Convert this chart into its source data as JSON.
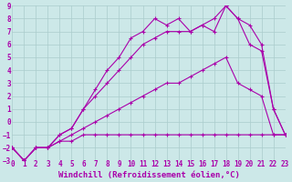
{
  "xlabel": "Windchill (Refroidissement éolien,°C)",
  "bg_color": "#cce8e8",
  "grid_color": "#aacccc",
  "line_color": "#aa00aa",
  "xlim": [
    0,
    23
  ],
  "ylim": [
    -3,
    9
  ],
  "xticks": [
    0,
    1,
    2,
    3,
    4,
    5,
    6,
    7,
    8,
    9,
    10,
    11,
    12,
    13,
    14,
    15,
    16,
    17,
    18,
    19,
    20,
    21,
    22,
    23
  ],
  "yticks": [
    -3,
    -2,
    -1,
    0,
    1,
    2,
    3,
    4,
    5,
    6,
    7,
    8,
    9
  ],
  "lines": [
    {
      "x": [
        0,
        1,
        2,
        3,
        4,
        5,
        6,
        7,
        8,
        9,
        10,
        11,
        12,
        13,
        14,
        15,
        16,
        17,
        18,
        19,
        20,
        21,
        22,
        23
      ],
      "y": [
        -2,
        -3,
        -2,
        -2,
        -1.5,
        -1.5,
        -1,
        -1,
        -1,
        -1,
        -1,
        -1,
        -1,
        -1,
        -1,
        -1,
        -1,
        -1,
        -1,
        -1,
        -1,
        -1,
        -1,
        -1
      ]
    },
    {
      "x": [
        0,
        1,
        2,
        3,
        4,
        5,
        6,
        7,
        8,
        9,
        10,
        11,
        12,
        13,
        14,
        15,
        16,
        17,
        18,
        19,
        20,
        21,
        22,
        23
      ],
      "y": [
        -2,
        -3,
        -2,
        -2,
        -1.5,
        -1,
        -0.5,
        0,
        0.5,
        1,
        1.5,
        2,
        2.5,
        3,
        3,
        3.5,
        4,
        4.5,
        5,
        3,
        2.5,
        2,
        -1,
        -1
      ]
    },
    {
      "x": [
        0,
        1,
        2,
        3,
        4,
        5,
        6,
        7,
        8,
        9,
        10,
        11,
        12,
        13,
        14,
        15,
        16,
        17,
        18,
        19,
        20,
        21,
        22,
        23
      ],
      "y": [
        -2,
        -3,
        -2,
        -2,
        -1,
        -0.5,
        1,
        2,
        3,
        4,
        5,
        6,
        6.5,
        7,
        7,
        7,
        7.5,
        8,
        9,
        8,
        6,
        5.5,
        1,
        -1
      ]
    },
    {
      "x": [
        0,
        1,
        2,
        3,
        4,
        5,
        6,
        7,
        8,
        9,
        10,
        11,
        12,
        13,
        14,
        15,
        16,
        17,
        18,
        19,
        20,
        21,
        22,
        23
      ],
      "y": [
        -2,
        -3,
        -2,
        -2,
        -1,
        -0.5,
        1,
        2.5,
        4,
        5,
        6.5,
        7,
        8,
        7.5,
        8,
        7,
        7.5,
        7,
        9,
        8,
        7.5,
        6,
        1,
        -1
      ]
    }
  ],
  "xlabel_fontsize": 6.5,
  "tick_fontsize": 5.5
}
